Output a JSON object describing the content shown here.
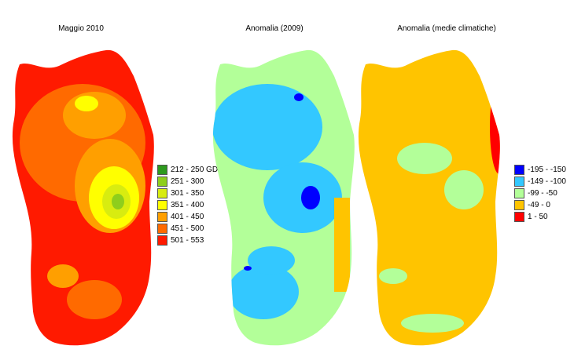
{
  "maps": [
    {
      "title": "Maggio 2010"
    },
    {
      "title": "Anomalia (2009)"
    },
    {
      "title": "Anomalia (medie climatiche)"
    }
  ],
  "legend_gdd": {
    "items": [
      {
        "label": "212 - 250 GDD",
        "color": "#2e9a1f"
      },
      {
        "label": "251 - 300",
        "color": "#8fce1c"
      },
      {
        "label": "301 - 350",
        "color": "#d8ec10"
      },
      {
        "label": "351 - 400",
        "color": "#ffff00"
      },
      {
        "label": "401 - 450",
        "color": "#ff9f00"
      },
      {
        "label": "451 - 500",
        "color": "#ff6a00"
      },
      {
        "label": "501 - 553",
        "color": "#ff1a00"
      }
    ]
  },
  "legend_anomaly": {
    "items": [
      {
        "label": "-195 - -150",
        "color": "#0000ff"
      },
      {
        "label": "-149 - -100",
        "color": "#33c8ff"
      },
      {
        "label": "-99 - -50",
        "color": "#b3ff99"
      },
      {
        "label": "-49 - 0",
        "color": "#ffc400"
      },
      {
        "label": "1 - 50",
        "color": "#ff0000"
      }
    ]
  }
}
